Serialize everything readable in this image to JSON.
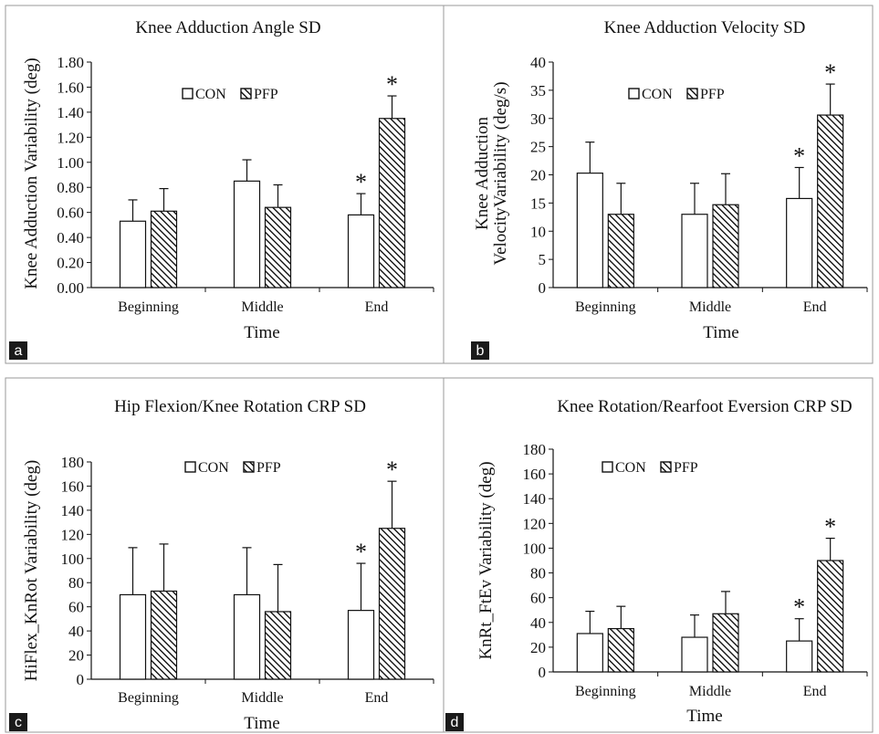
{
  "chart_data": [
    {
      "type": "bar",
      "panel": "a",
      "title": "Knee Adduction Angle SD",
      "ylabel_lines": [
        "Knee Adduction Variability  (deg)"
      ],
      "xlabel": "Time",
      "categories": [
        "Beginning",
        "Middle",
        "End"
      ],
      "y_ticks": [
        "0.00",
        "0.20",
        "0.40",
        "0.60",
        "0.80",
        "1.00",
        "1.20",
        "1.40",
        "1.60",
        "1.80"
      ],
      "ylim": [
        0,
        1.8
      ],
      "grid": false,
      "legend_position": "top-center",
      "series": [
        {
          "name": "CON",
          "values": [
            0.53,
            0.85,
            0.58
          ],
          "error": [
            0.17,
            0.17,
            0.17
          ],
          "significant": [
            false,
            false,
            true
          ]
        },
        {
          "name": "PFP",
          "values": [
            0.61,
            0.64,
            1.35
          ],
          "error": [
            0.18,
            0.18,
            0.18
          ],
          "significant": [
            false,
            false,
            true
          ]
        }
      ]
    },
    {
      "type": "bar",
      "panel": "b",
      "title": "Knee Adduction Velocity SD",
      "ylabel_lines": [
        "Knee Adduction",
        "VelocityVariability  (deg/s)"
      ],
      "xlabel": "Time",
      "categories": [
        "Beginning",
        "Middle",
        "End"
      ],
      "y_ticks": [
        "0",
        "5",
        "10",
        "15",
        "20",
        "25",
        "30",
        "35",
        "40"
      ],
      "ylim": [
        0,
        40
      ],
      "grid": false,
      "legend_position": "top-center",
      "series": [
        {
          "name": "CON",
          "values": [
            20.3,
            13.0,
            15.8
          ],
          "error": [
            5.5,
            5.5,
            5.5
          ],
          "significant": [
            false,
            false,
            true
          ]
        },
        {
          "name": "PFP",
          "values": [
            13.0,
            14.7,
            30.6
          ],
          "error": [
            5.5,
            5.5,
            5.5
          ],
          "significant": [
            false,
            false,
            true
          ]
        }
      ]
    },
    {
      "type": "bar",
      "panel": "c",
      "title": "Hip Flexion/Knee Rotation CRP SD",
      "ylabel_lines": [
        "HiFlex_KnRot Variability  (deg)"
      ],
      "xlabel": "Time",
      "categories": [
        "Beginning",
        "Middle",
        "End"
      ],
      "y_ticks": [
        "0",
        "20",
        "40",
        "60",
        "80",
        "100",
        "120",
        "140",
        "160",
        "180"
      ],
      "ylim": [
        0,
        180
      ],
      "grid": false,
      "legend_position": "top-center",
      "series": [
        {
          "name": "CON",
          "values": [
            70,
            70,
            57
          ],
          "error": [
            39,
            39,
            39
          ],
          "significant": [
            false,
            false,
            true
          ]
        },
        {
          "name": "PFP",
          "values": [
            73,
            56,
            125
          ],
          "error": [
            39,
            39,
            39
          ],
          "significant": [
            false,
            false,
            true
          ]
        }
      ]
    },
    {
      "type": "bar",
      "panel": "d",
      "title": "Knee Rotation/Rearfoot Eversion CRP SD",
      "ylabel_lines": [
        "KnRt_FtEv Variability  (deg)"
      ],
      "xlabel": "Time",
      "categories": [
        "Beginning",
        "Middle",
        "End"
      ],
      "y_ticks": [
        "0",
        "20",
        "40",
        "60",
        "80",
        "100",
        "120",
        "140",
        "160",
        "180"
      ],
      "ylim": [
        0,
        180
      ],
      "grid": false,
      "legend_position": "top-center",
      "series": [
        {
          "name": "CON",
          "values": [
            31,
            28,
            25
          ],
          "error": [
            18,
            18,
            18
          ],
          "significant": [
            false,
            false,
            true
          ]
        },
        {
          "name": "PFP",
          "values": [
            35,
            47,
            90
          ],
          "error": [
            18,
            18,
            18
          ],
          "significant": [
            false,
            false,
            true
          ]
        }
      ]
    }
  ],
  "significance_marker": "*",
  "colors": {
    "con_fill": "#ffffff",
    "pfp_hatch": "#000000",
    "stroke": "#111111",
    "frame": "#9a9a9a",
    "panel_label_bg": "#1a1a1a"
  }
}
